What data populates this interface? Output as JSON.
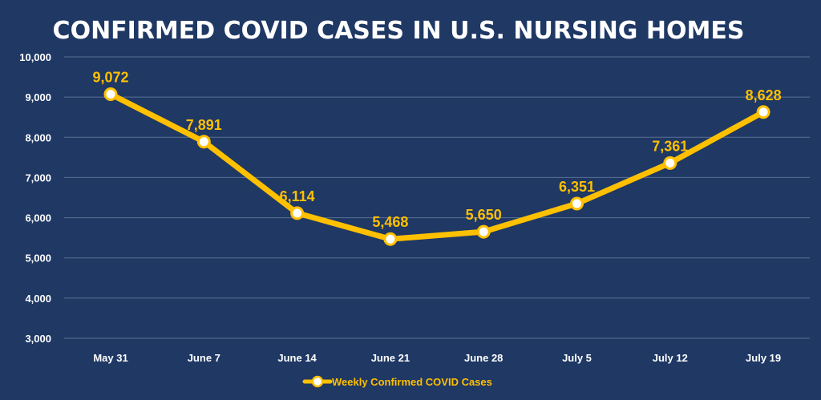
{
  "colors": {
    "background": "#1f3864",
    "series": "#ffc000",
    "grid": "#5a6f93",
    "axis_text": "#ffffff",
    "marker_fill": "#ffffff"
  },
  "chart_data": {
    "type": "line",
    "title": "CONFIRMED COVID CASES IN U.S. NURSING HOMES",
    "xlabel": "",
    "ylabel": "",
    "categories": [
      "May 31",
      "June 7",
      "June 14",
      "June 21",
      "June 28",
      "July 5",
      "July 12",
      "July 19"
    ],
    "series": [
      {
        "name": "Weekly Confirmed COVID Cases",
        "values": [
          9072,
          7891,
          6114,
          5468,
          5650,
          6351,
          7361,
          8628
        ],
        "labels": [
          "9,072",
          "7,891",
          "6,114",
          "5,468",
          "5,650",
          "6,351",
          "7,361",
          "8,628"
        ]
      }
    ],
    "ylim": [
      3000,
      10000
    ],
    "yticks": [
      3000,
      4000,
      5000,
      6000,
      7000,
      8000,
      9000,
      10000
    ],
    "ytick_labels": [
      "3,000",
      "4,000",
      "5,000",
      "6,000",
      "7,000",
      "8,000",
      "9,000",
      "10,000"
    ],
    "grid": true,
    "legend_position": "bottom"
  }
}
